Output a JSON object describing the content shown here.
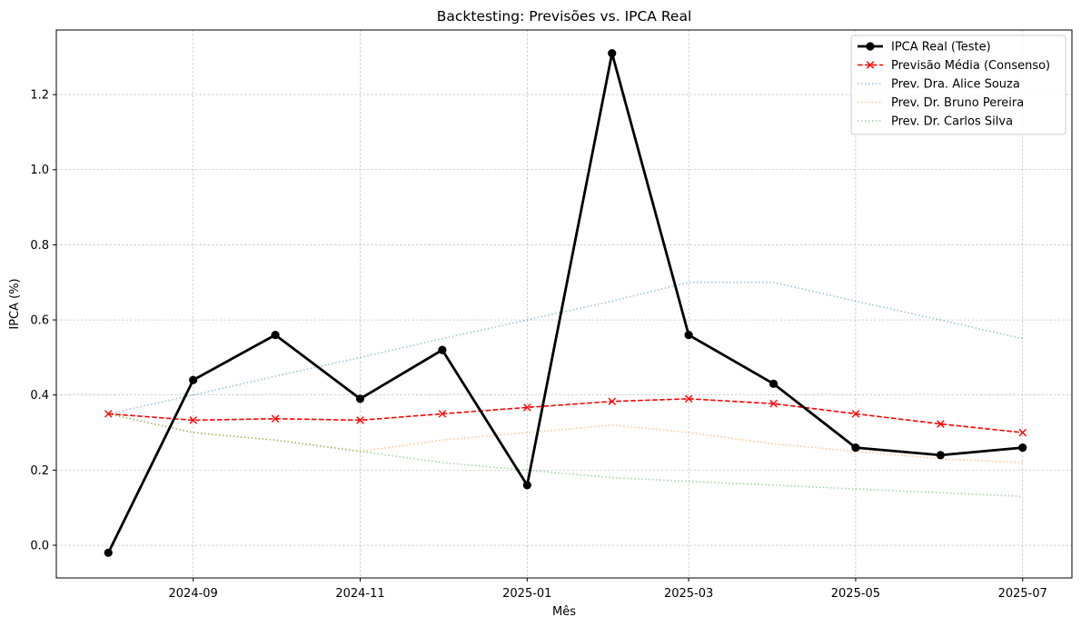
{
  "chart_data": {
    "type": "line",
    "title": "Backtesting: Previsões vs. IPCA Real",
    "xlabel": "Mês",
    "ylabel": "IPCA (%)",
    "x": [
      "2024-08",
      "2024-09",
      "2024-10",
      "2024-11",
      "2024-12",
      "2025-01",
      "2025-02",
      "2025-03",
      "2025-04",
      "2025-05",
      "2025-06",
      "2025-07"
    ],
    "xticks": [
      "2024-09",
      "2024-11",
      "2025-01",
      "2025-03",
      "2025-05",
      "2025-07"
    ],
    "yticks": [
      "0.0",
      "0.2",
      "0.4",
      "0.6",
      "0.8",
      "1.0",
      "1.2"
    ],
    "ylim": [
      -0.087,
      1.372
    ],
    "xlim": [
      "2024-07-13",
      "2025-07-19"
    ],
    "grid": true,
    "legend_position": "top-right",
    "series": [
      {
        "name": "IPCA Real (Teste)",
        "color": "#000000",
        "style": "solid-marker-circle",
        "values": [
          -0.02,
          0.44,
          0.56,
          0.39,
          0.52,
          0.16,
          1.31,
          0.56,
          0.43,
          0.26,
          0.24,
          0.26
        ]
      },
      {
        "name": "Previsão Média (Consenso)",
        "color": "#ff0000",
        "style": "dashed-marker-x",
        "values": [
          0.35,
          0.333,
          0.337,
          0.333,
          0.35,
          0.367,
          0.383,
          0.39,
          0.377,
          0.35,
          0.323,
          0.3
        ]
      },
      {
        "name": "Prev. Dra. Alice Souza",
        "color": "#1f77b4",
        "style": "dotted",
        "values": [
          0.35,
          0.4,
          0.45,
          0.5,
          0.55,
          0.6,
          0.65,
          0.7,
          0.7,
          0.65,
          0.6,
          0.55
        ]
      },
      {
        "name": "Prev. Dr. Bruno Pereira",
        "color": "#ff7f0e",
        "style": "dotted",
        "values": [
          0.35,
          0.3,
          0.28,
          0.25,
          0.28,
          0.3,
          0.32,
          0.3,
          0.27,
          0.25,
          0.23,
          0.22
        ]
      },
      {
        "name": "Prev. Dr. Carlos Silva",
        "color": "#2ca02c",
        "style": "dotted",
        "values": [
          0.35,
          0.3,
          0.28,
          0.25,
          0.22,
          0.2,
          0.18,
          0.17,
          0.16,
          0.15,
          0.14,
          0.13
        ]
      }
    ]
  }
}
